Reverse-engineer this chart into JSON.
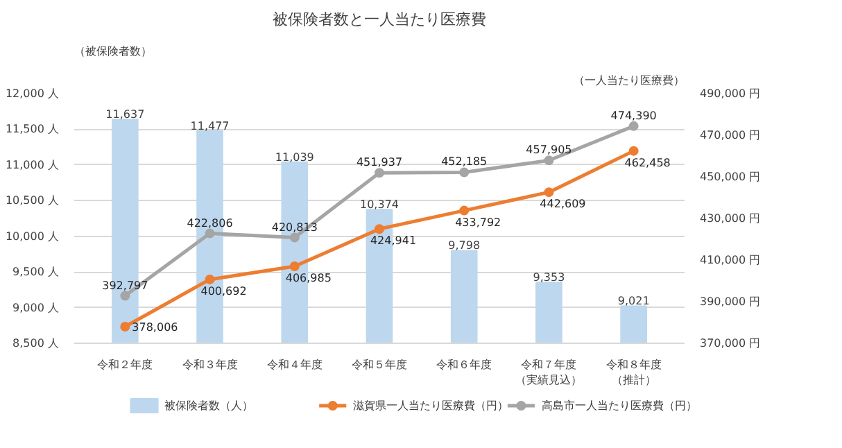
{
  "chart_data": {
    "type": "bar",
    "title": "被保険者数と一人当たり医療費",
    "ylabel": "（被保険者数）",
    "y2label": "（一人当たり医療費）",
    "categories": [
      "令和２年度",
      "令和３年度",
      "令和４年度",
      "令和５年度",
      "令和６年度",
      "令和７年度（実績見込）",
      "令和８年度（推計）"
    ],
    "series": [
      {
        "name": "被保険者数（人）",
        "color": "#bdd7ee",
        "values": [
          11637,
          11477,
          11039,
          10374,
          9798,
          9353,
          9021
        ],
        "value_labels": [
          "11,637",
          "11,477",
          "11,039",
          "10,374",
          "9,798",
          "9,353",
          "9,021"
        ]
      },
      {
        "name": "滋賀県一人当たり医療費（円）",
        "type": "line",
        "axis": "y2",
        "color": "#ed7d31",
        "values": [
          378006,
          400692,
          406985,
          424941,
          433792,
          442609,
          462458
        ],
        "value_labels": [
          "378,006",
          "400,692",
          "406,985",
          "424,941",
          "433,792",
          "442,609",
          "462,458"
        ]
      },
      {
        "name": "高島市一人当たり医療費（円）",
        "type": "line",
        "axis": "y2",
        "color": "#a5a5a5",
        "values": [
          392797,
          422806,
          420813,
          451937,
          452185,
          457905,
          474390
        ],
        "value_labels": [
          "392,797",
          "422,806",
          "420,813",
          "451,937",
          "452,185",
          "457,905",
          "474,390"
        ]
      }
    ],
    "ylim": [
      8500,
      12000
    ],
    "yticks": [
      {
        "value": 8500,
        "label": "8,500 人"
      },
      {
        "value": 9000,
        "label": "9,000 人"
      },
      {
        "value": 9500,
        "label": "9,500 人"
      },
      {
        "value": 10000,
        "label": "10,000 人"
      },
      {
        "value": 10500,
        "label": "10,500 人"
      },
      {
        "value": 11000,
        "label": "11,000 人"
      },
      {
        "value": 11500,
        "label": "11,500 人"
      },
      {
        "value": 12000,
        "label": "12,000 人"
      }
    ],
    "y2lim": [
      370000,
      490000
    ],
    "y2ticks": [
      {
        "value": 370000,
        "label": "370,000 円"
      },
      {
        "value": 390000,
        "label": "390,000 円"
      },
      {
        "value": 410000,
        "label": "410,000 円"
      },
      {
        "value": 430000,
        "label": "430,000 円"
      },
      {
        "value": 450000,
        "label": "450,000 円"
      },
      {
        "value": 470000,
        "label": "470,000 円"
      },
      {
        "value": 490000,
        "label": "490,000 円"
      }
    ],
    "grid": "y",
    "legend": "bottom",
    "marker": "circle",
    "line_style": "solid"
  }
}
